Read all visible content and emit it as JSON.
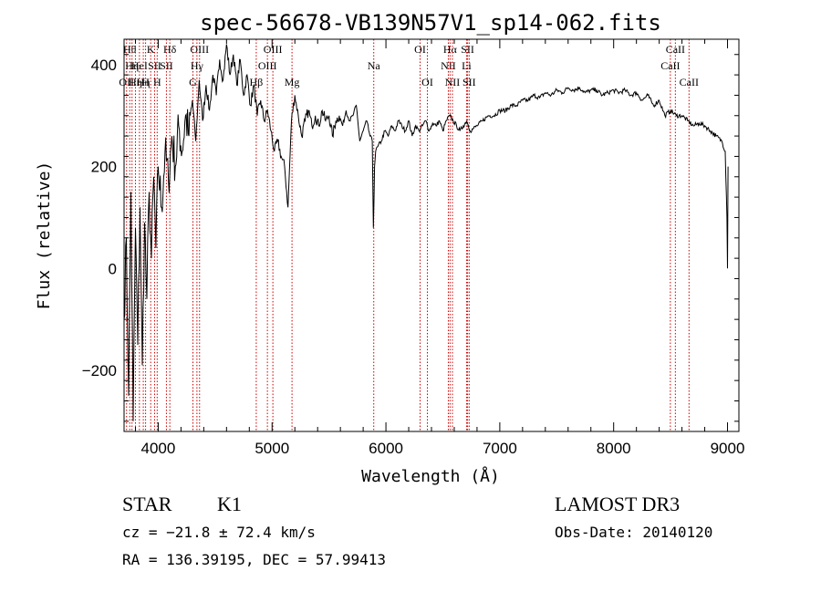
{
  "chart_data": {
    "type": "line",
    "title": "spec-56678-VB139N57V1_sp14-062.fits",
    "xlabel": "Wavelength (Å)",
    "ylabel": "Flux (relative)",
    "xlim": [
      3700,
      9100
    ],
    "ylim": [
      -320,
      450
    ],
    "x_ticks": [
      4000,
      5000,
      6000,
      7000,
      8000,
      9000
    ],
    "y_ticks": [
      -200,
      0,
      200,
      400
    ],
    "grid": false,
    "line_color": "#000000",
    "marker_color": "#cc0000",
    "series": [
      {
        "x": [
          3700,
          3720,
          3740,
          3760,
          3780,
          3800,
          3820,
          3840,
          3860,
          3880,
          3900,
          3920,
          3940,
          3960,
          3980,
          4000,
          4030,
          4060,
          4090,
          4120,
          4150,
          4180,
          4210,
          4240,
          4270,
          4300,
          4330,
          4360,
          4390,
          4420,
          4450,
          4480,
          4510,
          4540,
          4570,
          4600,
          4630,
          4660,
          4690,
          4720,
          4750,
          4780,
          4810,
          4840,
          4870,
          4900,
          4930,
          4960,
          4990,
          5020,
          5050,
          5080,
          5110,
          5140,
          5170,
          5200,
          5230,
          5260,
          5290,
          5320,
          5350,
          5380,
          5410,
          5440,
          5470,
          5500,
          5530,
          5560,
          5590,
          5620,
          5650,
          5680,
          5710,
          5740,
          5770,
          5800,
          5830,
          5860,
          5880,
          5890,
          5900,
          5910,
          5930,
          5960,
          5990,
          6020,
          6050,
          6080,
          6110,
          6140,
          6170,
          6200,
          6230,
          6260,
          6290,
          6320,
          6350,
          6380,
          6410,
          6440,
          6470,
          6500,
          6530,
          6560,
          6590,
          6620,
          6650,
          6680,
          6710,
          6740,
          6770,
          6800,
          6850,
          6900,
          6950,
          7000,
          7050,
          7100,
          7150,
          7200,
          7250,
          7300,
          7350,
          7400,
          7450,
          7500,
          7550,
          7600,
          7650,
          7700,
          7750,
          7800,
          7850,
          7900,
          7950,
          8000,
          8050,
          8100,
          8150,
          8200,
          8250,
          8300,
          8350,
          8400,
          8450,
          8500,
          8550,
          8600,
          8650,
          8700,
          8750,
          8800,
          8850,
          8900,
          8950,
          8980,
          8995,
          9000,
          9005
        ],
        "y": [
          -100,
          60,
          -250,
          150,
          -300,
          80,
          -150,
          120,
          -190,
          90,
          -60,
          150,
          20,
          180,
          40,
          200,
          120,
          230,
          170,
          260,
          200,
          280,
          230,
          300,
          260,
          330,
          250,
          370,
          290,
          360,
          310,
          380,
          340,
          410,
          370,
          440,
          380,
          420,
          360,
          410,
          340,
          380,
          320,
          360,
          300,
          330,
          290,
          310,
          270,
          230,
          250,
          220,
          200,
          120,
          290,
          340,
          300,
          260,
          290,
          310,
          280,
          300,
          280,
          310,
          290,
          300,
          260,
          290,
          300,
          280,
          310,
          290,
          300,
          320,
          250,
          270,
          290,
          260,
          250,
          80,
          200,
          230,
          240,
          250,
          270,
          260,
          280,
          270,
          290,
          280,
          270,
          290,
          260,
          280,
          270,
          280,
          290,
          270,
          285,
          280,
          290,
          270,
          290,
          300,
          290,
          280,
          270,
          280,
          290,
          270,
          275,
          280,
          290,
          300,
          300,
          310,
          310,
          320,
          320,
          330,
          330,
          340,
          335,
          345,
          340,
          350,
          345,
          355,
          350,
          355,
          345,
          350,
          350,
          340,
          345,
          350,
          345,
          350,
          340,
          345,
          330,
          340,
          320,
          330,
          300,
          310,
          300,
          300,
          290,
          280,
          285,
          280,
          270,
          260,
          250,
          230,
          100,
          0,
          200
        ]
      }
    ],
    "line_markers": [
      {
        "x": 3722,
        "label": "OII",
        "row": 3
      },
      {
        "x": 3750,
        "label": "Hθ",
        "row": 1
      },
      {
        "x": 3770,
        "label": "Hη",
        "row": 2
      },
      {
        "x": 3800,
        "label": "Hη",
        "row": 3
      },
      {
        "x": 3835,
        "label": "HeI",
        "row": 2
      },
      {
        "x": 3869,
        "label": "Hη",
        "row": 3
      },
      {
        "x": 3889,
        "label": "H",
        "row": 3
      },
      {
        "x": 3934,
        "label": "K",
        "row": 1
      },
      {
        "x": 3968,
        "label": "SII",
        "row": 2
      },
      {
        "x": 4102,
        "label": "Hδ",
        "row": 1
      },
      {
        "x": 4072,
        "label": "SII",
        "row": 2
      },
      {
        "x": 3991,
        "label": "H",
        "row": 3
      },
      {
        "x": 4305,
        "label": "G",
        "row": 3
      },
      {
        "x": 4340,
        "label": "Hγ",
        "row": 2
      },
      {
        "x": 4363,
        "label": "OIII",
        "row": 1
      },
      {
        "x": 4861,
        "label": "Hβ",
        "row": 3
      },
      {
        "x": 4959,
        "label": "OIII",
        "row": 2
      },
      {
        "x": 5007,
        "label": "OIII",
        "row": 1
      },
      {
        "x": 5175,
        "label": "Mg",
        "row": 3
      },
      {
        "x": 5893,
        "label": "Na",
        "row": 2
      },
      {
        "x": 6300,
        "label": "OI",
        "row": 1
      },
      {
        "x": 6364,
        "label": "OI",
        "row": 3
      },
      {
        "x": 6548,
        "label": "NII",
        "row": 2
      },
      {
        "x": 6563,
        "label": "Hα",
        "row": 1
      },
      {
        "x": 6584,
        "label": "NII",
        "row": 3
      },
      {
        "x": 6708,
        "label": "Li",
        "row": 2
      },
      {
        "x": 6717,
        "label": "SII",
        "row": 1
      },
      {
        "x": 6731,
        "label": "SII",
        "row": 3
      },
      {
        "x": 8498,
        "label": "CaII",
        "row": 2
      },
      {
        "x": 8542,
        "label": "CaII",
        "row": 1
      },
      {
        "x": 8662,
        "label": "CaII",
        "row": 3
      }
    ]
  },
  "footer": {
    "object_class": "STAR",
    "subclass": "K1",
    "survey": "LAMOST DR3",
    "velocity": "cz = −21.8 ± 72.4 km/s",
    "obs_date": "Obs-Date: 20140120",
    "coords": "RA = 136.39195, DEC =  57.99413"
  }
}
